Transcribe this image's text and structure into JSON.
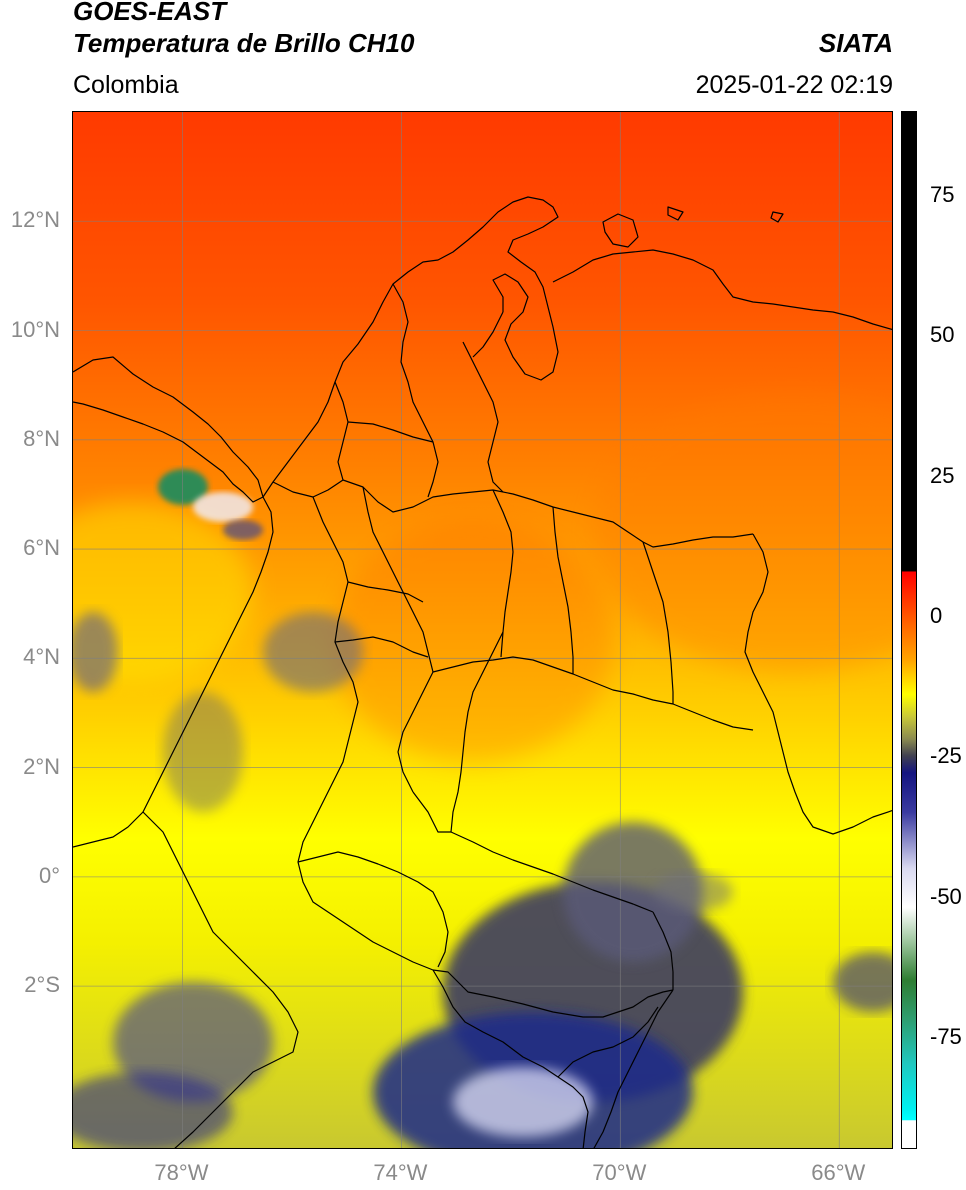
{
  "header": {
    "title_line1": "GOES-EAST",
    "title_line2": "Temperatura de Brillo CH10",
    "organization": "SIATA",
    "region": "Colombia",
    "datetime": "2025-01-22 02:19"
  },
  "map": {
    "lon_range": [
      -80,
      -65
    ],
    "lat_range": [
      -5,
      14
    ],
    "lat_ticks": [
      {
        "lat": 12,
        "label": "12°N"
      },
      {
        "lat": 10,
        "label": "10°N"
      },
      {
        "lat": 8,
        "label": "8°N"
      },
      {
        "lat": 6,
        "label": "6°N"
      },
      {
        "lat": 4,
        "label": "4°N"
      },
      {
        "lat": 2,
        "label": "2°N"
      },
      {
        "lat": 0,
        "label": "0°"
      },
      {
        "lat": -2,
        "label": "2°S"
      }
    ],
    "lon_ticks": [
      {
        "lon": -78,
        "label": "78°W"
      },
      {
        "lon": -74,
        "label": "74°W"
      },
      {
        "lon": -70,
        "label": "70°W"
      },
      {
        "lon": -66,
        "label": "66°W"
      }
    ],
    "colors": {
      "warm_red": "#ff3a00",
      "orange": "#ff9a00",
      "yellow": "#ffff00",
      "olive": "#c8c838",
      "cloud_gray": "#4a4a6a",
      "cloud_navy": "#202a80",
      "cloud_white": "#f0f0ff",
      "cloud_green": "#2e8b57"
    }
  },
  "colorbar": {
    "range": [
      -95,
      90
    ],
    "ticks": [
      {
        "value": 75,
        "label": "75"
      },
      {
        "value": 50,
        "label": "50"
      },
      {
        "value": 25,
        "label": "25"
      },
      {
        "value": 0,
        "label": "0"
      },
      {
        "value": -25,
        "label": "-25"
      },
      {
        "value": -50,
        "label": "-50"
      },
      {
        "value": -75,
        "label": "-75"
      }
    ],
    "stops": [
      {
        "value": 90,
        "color": "#000000"
      },
      {
        "value": 8,
        "color": "#000000"
      },
      {
        "value": 7.9,
        "color": "#ff0000"
      },
      {
        "value": -2,
        "color": "#ff6a00"
      },
      {
        "value": -8,
        "color": "#ffa500"
      },
      {
        "value": -14,
        "color": "#ffff00"
      },
      {
        "value": -18,
        "color": "#c8c838"
      },
      {
        "value": -22,
        "color": "#8a8a50"
      },
      {
        "value": -25,
        "color": "#404050"
      },
      {
        "value": -28,
        "color": "#141480"
      },
      {
        "value": -35,
        "color": "#3a3aa0"
      },
      {
        "value": -45,
        "color": "#d8d8f0"
      },
      {
        "value": -52,
        "color": "#ffffff"
      },
      {
        "value": -58,
        "color": "#a0c8a0"
      },
      {
        "value": -65,
        "color": "#2e7d32"
      },
      {
        "value": -72,
        "color": "#2e9e70"
      },
      {
        "value": -80,
        "color": "#20c8c0"
      },
      {
        "value": -88,
        "color": "#00f0f0"
      },
      {
        "value": -90,
        "color": "#00ffff"
      },
      {
        "value": -90.1,
        "color": "#ffffff"
      },
      {
        "value": -95,
        "color": "#ffffff"
      }
    ]
  }
}
